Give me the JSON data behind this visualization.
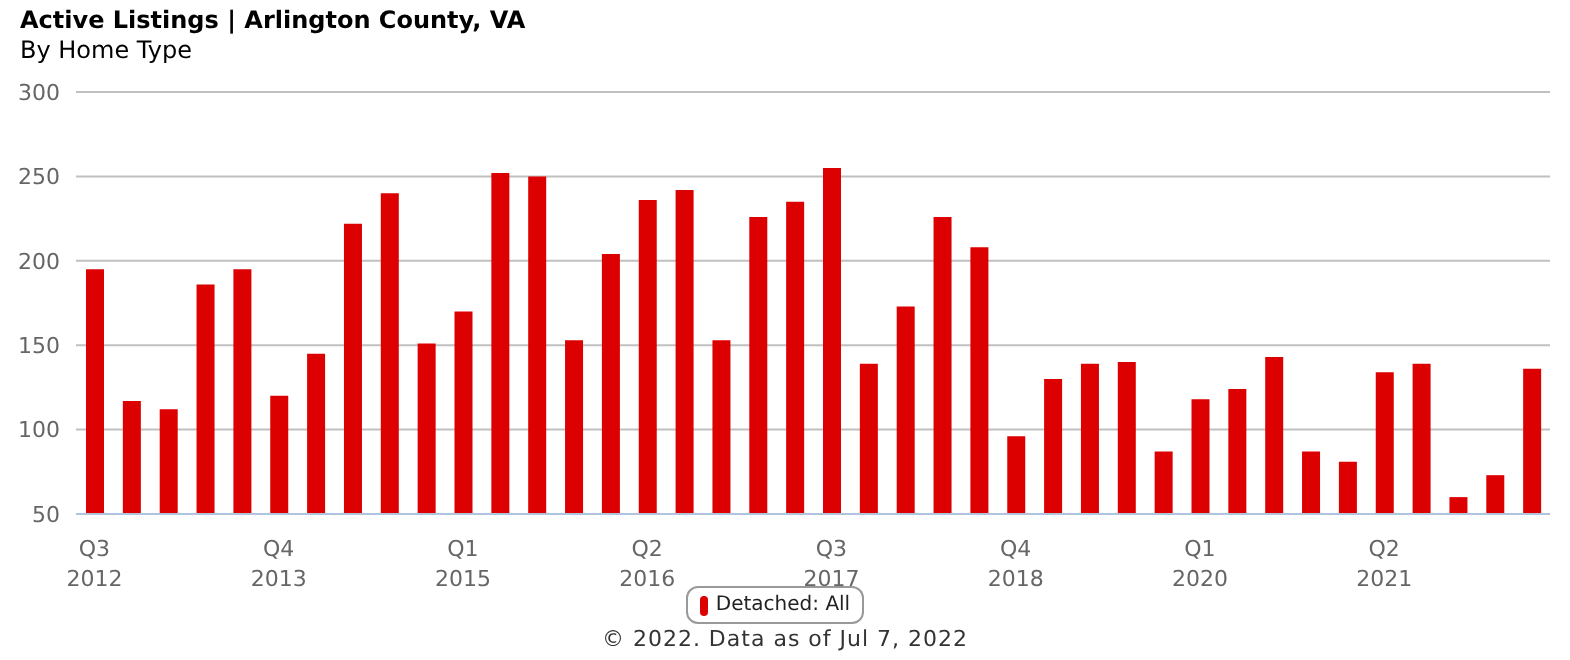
{
  "chart_data": {
    "type": "bar",
    "title": "Active Listings | Arlington County, VA",
    "subtitle": "By Home Type",
    "categories": [
      "Q3 2012",
      null,
      null,
      null,
      null,
      "Q4 2013",
      null,
      null,
      null,
      null,
      "Q1 2015",
      null,
      null,
      null,
      null,
      "Q2 2016",
      null,
      null,
      null,
      null,
      "Q3 2017",
      null,
      null,
      null,
      null,
      "Q4 2018",
      null,
      null,
      null,
      null,
      "Q1 2020",
      null,
      null,
      null,
      null,
      "Q2 2021",
      null,
      null,
      null,
      null
    ],
    "series": [
      {
        "name": "Detached: All",
        "color": "#dd0000",
        "values": [
          195,
          117,
          112,
          186,
          195,
          120,
          145,
          222,
          240,
          151,
          170,
          252,
          250,
          153,
          204,
          236,
          242,
          153,
          226,
          235,
          255,
          139,
          173,
          226,
          208,
          96,
          130,
          139,
          140,
          87,
          118,
          124,
          143,
          87,
          81,
          134,
          139,
          60,
          73,
          136
        ]
      }
    ],
    "ylim": [
      50,
      300
    ],
    "yticks": [
      50,
      100,
      150,
      200,
      250,
      300
    ],
    "grid": "y",
    "legend": "bottom",
    "annotations": [
      "© 2022. Data as of Jul 7, 2022"
    ]
  }
}
